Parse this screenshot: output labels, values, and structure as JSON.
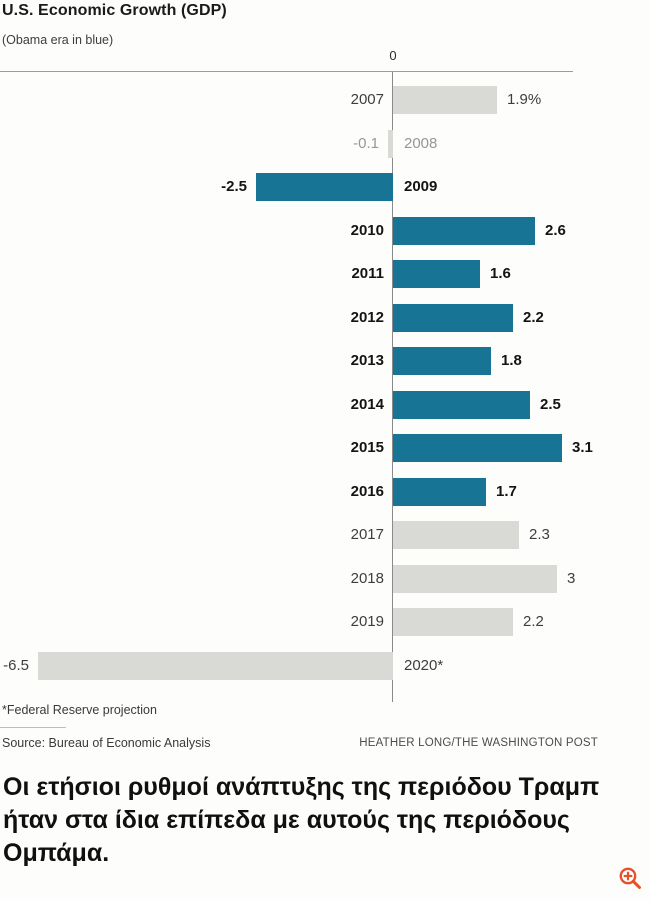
{
  "header": {
    "title": "U.S. Economic Growth (GDP)",
    "subtitle": "(Obama era in blue)"
  },
  "chart_data": {
    "type": "bar",
    "orientation": "horizontal",
    "title": "U.S. Economic Growth (GDP)",
    "legend_note": "(Obama era in blue)",
    "zero_tick_label": "0",
    "x_range": [
      -7.2,
      3.3
    ],
    "grid": false,
    "categories": [
      "2007",
      "2008",
      "2009",
      "2010",
      "2011",
      "2012",
      "2013",
      "2014",
      "2015",
      "2016",
      "2017",
      "2018",
      "2019",
      "2020*"
    ],
    "values": [
      1.9,
      -0.1,
      -2.5,
      2.6,
      1.6,
      2.2,
      1.8,
      2.5,
      3.1,
      1.7,
      2.3,
      3,
      2.2,
      -6.5
    ],
    "value_labels": [
      "1.9%",
      "-0.1",
      "-2.5",
      "2.6",
      "1.6",
      "2.2",
      "1.8",
      "2.5",
      "3.1",
      "1.7",
      "2.3",
      "3",
      "2.2",
      "-6.5"
    ],
    "era": [
      "other",
      "other",
      "obama",
      "obama",
      "obama",
      "obama",
      "obama",
      "obama",
      "obama",
      "obama",
      "other",
      "other",
      "other",
      "other"
    ],
    "emphasis": [
      "regular",
      "muted",
      "bold",
      "bold",
      "bold",
      "bold",
      "bold",
      "bold",
      "bold",
      "bold",
      "regular",
      "regular",
      "regular",
      "regular"
    ],
    "colors": {
      "obama": "#177494",
      "other": "#d9d9d6"
    }
  },
  "footer": {
    "footnote": "*Federal Reserve projection",
    "source": "Source: Bureau of Economic Analysis",
    "credit": "HEATHER LONG/THE WASHINGTON POST"
  },
  "caption": {
    "text": "Οι ετήσιοι ρυθμοί ανάπτυξης της περιόδου Τραμπ ήταν στα ίδια επίπεδα με αυτούς της περιόδους Ομπάμα."
  },
  "zoom_icon": {
    "label": "zoom-in",
    "color": "#e8502b"
  }
}
